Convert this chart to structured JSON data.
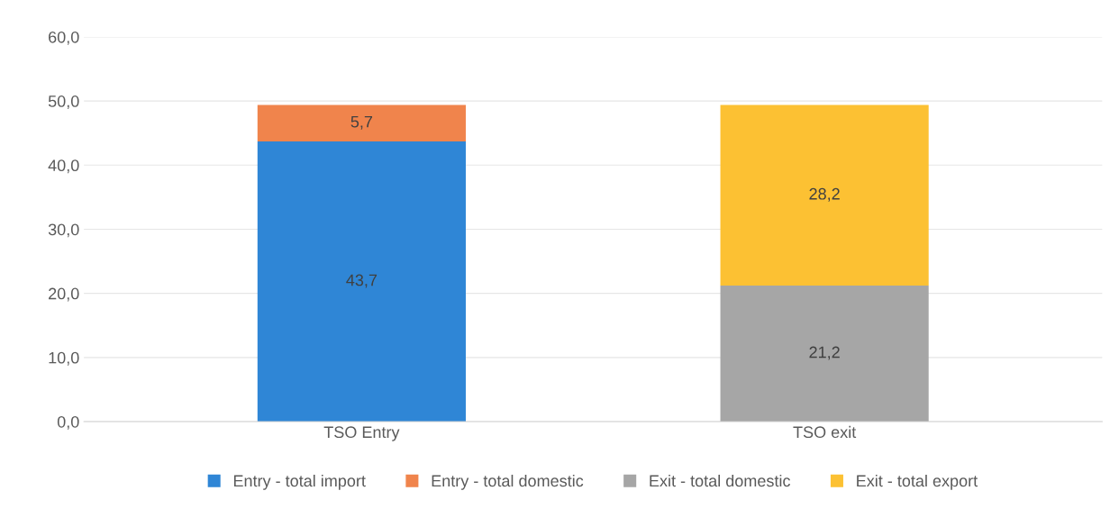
{
  "chart_data": {
    "type": "bar",
    "stacked": true,
    "categories": [
      "TSO Entry",
      "TSO exit"
    ],
    "series": [
      {
        "name": "Entry - total import",
        "color": "#2f86d6",
        "values": [
          43.7,
          null
        ],
        "value_labels": [
          "43,7",
          null
        ]
      },
      {
        "name": "Entry - total domestic",
        "color": "#f0844c",
        "values": [
          5.7,
          null
        ],
        "value_labels": [
          "5,7",
          null
        ]
      },
      {
        "name": "Exit - total domestic",
        "color": "#a6a6a6",
        "values": [
          null,
          21.2
        ],
        "value_labels": [
          null,
          "21,2"
        ]
      },
      {
        "name": "Exit - total export",
        "color": "#fcc133",
        "values": [
          null,
          28.2
        ],
        "value_labels": [
          null,
          "28,2"
        ]
      }
    ],
    "ylim": [
      0,
      60
    ],
    "yticks": [
      {
        "value": 0,
        "label": "0,0"
      },
      {
        "value": 10,
        "label": "10,0"
      },
      {
        "value": 20,
        "label": "20,0"
      },
      {
        "value": 30,
        "label": "30,0"
      },
      {
        "value": 40,
        "label": "40,0"
      },
      {
        "value": 50,
        "label": "50,0"
      },
      {
        "value": 60,
        "label": "60,0"
      }
    ],
    "grid": "y",
    "legend": "bottom"
  }
}
